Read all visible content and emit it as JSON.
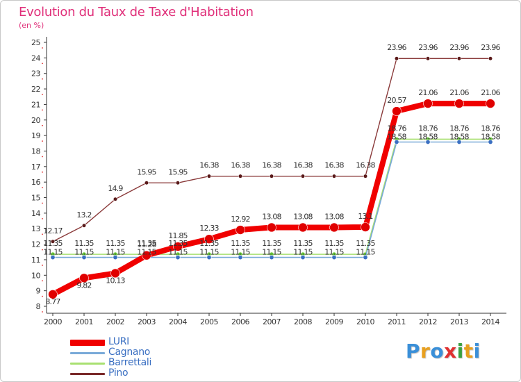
{
  "header": {
    "title": "Evolution du Taux de Taxe d'Habitation",
    "unit": "(en %)"
  },
  "brand": {
    "letters": [
      "P",
      "r",
      "o",
      "x",
      "i",
      "t",
      "i"
    ],
    "colors": [
      "#3a8fd8",
      "#e8a020",
      "#3a8fd8",
      "#e03030",
      "#3aa040",
      "#e8a020",
      "#3a8fd8"
    ]
  },
  "chart_data": {
    "type": "line",
    "title": "Evolution du Taux de Taxe d'Habitation",
    "ylabel": "(en %)",
    "xlabel": "",
    "x": [
      "2000",
      "2001",
      "2002",
      "2003",
      "2004",
      "2005",
      "2006",
      "2007",
      "2008",
      "2009",
      "2010",
      "2011",
      "2012",
      "2013",
      "2014"
    ],
    "ylim": [
      8,
      25
    ],
    "yticks": [
      8,
      9,
      10,
      11,
      12,
      13,
      14,
      15,
      16,
      17,
      18,
      19,
      20,
      21,
      22,
      23,
      24,
      25
    ],
    "grid": false,
    "legend_position": "bottom-left",
    "series": [
      {
        "name": "LURI",
        "color": "#f00000",
        "values": [
          8.77,
          9.82,
          10.13,
          11.28,
          11.85,
          12.33,
          12.92,
          13.08,
          13.08,
          13.08,
          13.1,
          20.57,
          21.06,
          21.06,
          21.06
        ],
        "labels": [
          "8.77",
          "9.82",
          "10.13",
          "11.28",
          "11.85",
          "12.33",
          "12.92",
          "13.08",
          "13.08",
          "13.08",
          "13.1",
          "20.57",
          "21.06",
          "21.06",
          "21.06"
        ]
      },
      {
        "name": "Cagnano",
        "color": "#7aaad8",
        "values": [
          11.15,
          11.15,
          11.15,
          11.15,
          11.15,
          11.15,
          11.15,
          11.15,
          11.15,
          11.15,
          11.15,
          18.58,
          18.58,
          18.58,
          18.58
        ],
        "labels": [
          "11.15",
          "11.15",
          "11.15",
          "11.15",
          "11.15",
          "11.15",
          "11.15",
          "11.15",
          "11.15",
          "11.15",
          "11.15",
          "18.58",
          "18.58",
          "18.58",
          "18.58"
        ]
      },
      {
        "name": "Barrettali",
        "color": "#a8e070",
        "values": [
          11.35,
          11.35,
          11.35,
          11.35,
          11.35,
          11.35,
          11.35,
          11.35,
          11.35,
          11.35,
          11.35,
          18.76,
          18.76,
          18.76,
          18.76
        ],
        "labels": [
          "11.35",
          "11.35",
          "11.35",
          "11.35",
          "11.35",
          "11.35",
          "11.35",
          "11.35",
          "11.35",
          "11.35",
          "11.35",
          "18.76",
          "18.76",
          "18.76",
          "18.76"
        ]
      },
      {
        "name": "Pino",
        "color": "#7a2a2a",
        "values": [
          12.17,
          13.2,
          14.9,
          15.95,
          15.95,
          16.38,
          16.38,
          16.38,
          16.38,
          16.38,
          16.38,
          23.96,
          23.96,
          23.96,
          23.96
        ],
        "labels": [
          "12.17",
          "13.2",
          "14.9",
          "15.95",
          "15.95",
          "16.38",
          "16.38",
          "16.38",
          "16.38",
          "16.38",
          "16.38",
          "23.96",
          "23.96",
          "23.96",
          "23.96"
        ]
      }
    ]
  }
}
